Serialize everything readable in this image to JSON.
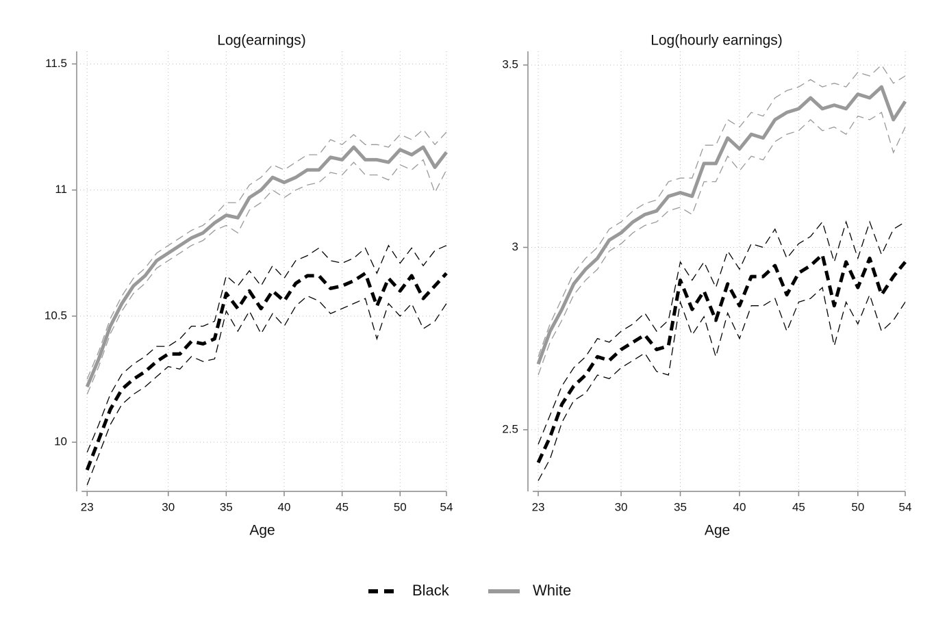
{
  "chart_data": [
    {
      "type": "line",
      "title": "Log(earnings)",
      "x_label": "Age",
      "x": [
        23,
        24,
        25,
        26,
        27,
        28,
        29,
        30,
        31,
        32,
        33,
        34,
        35,
        36,
        37,
        38,
        39,
        40,
        41,
        42,
        43,
        44,
        45,
        46,
        47,
        48,
        49,
        50,
        51,
        52,
        53,
        54
      ],
      "xlim": [
        22.1,
        54
      ],
      "xticks": [
        23,
        30,
        35,
        40,
        45,
        50,
        54
      ],
      "ylim": [
        9.805,
        11.55
      ],
      "yticks": [
        10,
        10.5,
        11,
        11.5
      ],
      "grid": true,
      "series": [
        {
          "name": "Black",
          "color": "#000000",
          "dashed": true,
          "values": [
            9.89,
            10.01,
            10.13,
            10.21,
            10.25,
            10.28,
            10.32,
            10.35,
            10.35,
            10.4,
            10.39,
            10.41,
            10.59,
            10.53,
            10.6,
            10.53,
            10.6,
            10.56,
            10.63,
            10.66,
            10.66,
            10.61,
            10.62,
            10.64,
            10.67,
            10.54,
            10.65,
            10.6,
            10.66,
            10.57,
            10.62,
            10.67
          ],
          "upper": [
            9.96,
            10.07,
            10.19,
            10.27,
            10.31,
            10.34,
            10.38,
            10.38,
            10.41,
            10.46,
            10.46,
            10.48,
            10.66,
            10.62,
            10.68,
            10.62,
            10.7,
            10.65,
            10.72,
            10.74,
            10.77,
            10.72,
            10.71,
            10.73,
            10.77,
            10.67,
            10.78,
            10.71,
            10.77,
            10.7,
            10.76,
            10.78
          ],
          "lower": [
            9.83,
            9.95,
            10.07,
            10.15,
            10.19,
            10.22,
            10.26,
            10.3,
            10.29,
            10.34,
            10.32,
            10.33,
            10.52,
            10.44,
            10.52,
            10.43,
            10.51,
            10.46,
            10.54,
            10.58,
            10.56,
            10.51,
            10.53,
            10.55,
            10.57,
            10.41,
            10.55,
            10.5,
            10.55,
            10.45,
            10.48,
            10.55
          ]
        },
        {
          "name": "White",
          "color": "#999999",
          "dashed": false,
          "values": [
            10.22,
            10.33,
            10.46,
            10.55,
            10.62,
            10.66,
            10.72,
            10.75,
            10.78,
            10.81,
            10.83,
            10.87,
            10.9,
            10.89,
            10.97,
            11.0,
            11.05,
            11.03,
            11.05,
            11.08,
            11.08,
            11.13,
            11.12,
            11.17,
            11.12,
            11.12,
            11.11,
            11.16,
            11.14,
            11.17,
            11.09,
            11.15
          ],
          "upper": [
            10.25,
            10.36,
            10.49,
            10.58,
            10.65,
            10.69,
            10.75,
            10.78,
            10.81,
            10.84,
            10.86,
            10.9,
            10.95,
            10.95,
            11.02,
            11.05,
            11.1,
            11.08,
            11.11,
            11.14,
            11.14,
            11.2,
            11.18,
            11.22,
            11.18,
            11.18,
            11.17,
            11.22,
            11.2,
            11.24,
            11.18,
            11.23
          ],
          "lower": [
            10.19,
            10.3,
            10.43,
            10.52,
            10.59,
            10.63,
            10.69,
            10.72,
            10.75,
            10.78,
            10.8,
            10.84,
            10.86,
            10.83,
            10.92,
            10.95,
            11.0,
            10.97,
            11.0,
            11.02,
            11.03,
            11.07,
            11.06,
            11.11,
            11.06,
            11.06,
            11.04,
            11.1,
            11.08,
            11.12,
            10.99,
            11.08
          ]
        }
      ]
    },
    {
      "type": "line",
      "title": "Log(hourly earnings)",
      "x_label": "Age",
      "x": [
        23,
        24,
        25,
        26,
        27,
        28,
        29,
        30,
        31,
        32,
        33,
        34,
        35,
        36,
        37,
        38,
        39,
        40,
        41,
        42,
        43,
        44,
        45,
        46,
        47,
        48,
        49,
        50,
        51,
        52,
        53,
        54
      ],
      "xlim": [
        22.13,
        54
      ],
      "xticks": [
        23,
        30,
        35,
        40,
        45,
        50,
        54
      ],
      "ylim": [
        2.331,
        3.5375
      ],
      "yticks": [
        2.5,
        3,
        3.5
      ],
      "grid": true,
      "series": [
        {
          "color": "#000000",
          "dashed": true,
          "values": [
            2.41,
            2.48,
            2.57,
            2.62,
            2.65,
            2.7,
            2.69,
            2.72,
            2.74,
            2.76,
            2.72,
            2.73,
            2.91,
            2.83,
            2.88,
            2.8,
            2.9,
            2.84,
            2.92,
            2.92,
            2.95,
            2.87,
            2.93,
            2.95,
            2.98,
            2.84,
            2.96,
            2.89,
            2.97,
            2.87,
            2.92,
            2.96
          ],
          "upper": [
            2.46,
            2.54,
            2.62,
            2.67,
            2.7,
            2.75,
            2.74,
            2.77,
            2.79,
            2.82,
            2.77,
            2.8,
            2.96,
            2.91,
            2.96,
            2.89,
            2.99,
            2.94,
            3.01,
            3.0,
            3.05,
            2.97,
            3.01,
            3.03,
            3.07,
            2.96,
            3.07,
            2.97,
            3.07,
            2.98,
            3.05,
            3.07
          ],
          "lower": [
            2.36,
            2.42,
            2.52,
            2.58,
            2.6,
            2.65,
            2.64,
            2.67,
            2.69,
            2.71,
            2.66,
            2.65,
            2.85,
            2.76,
            2.81,
            2.7,
            2.82,
            2.75,
            2.84,
            2.84,
            2.86,
            2.77,
            2.85,
            2.86,
            2.89,
            2.73,
            2.85,
            2.79,
            2.87,
            2.77,
            2.8,
            2.85
          ]
        },
        {
          "color": "#999999",
          "dashed": false,
          "values": [
            2.68,
            2.77,
            2.83,
            2.9,
            2.94,
            2.97,
            3.02,
            3.04,
            3.07,
            3.09,
            3.1,
            3.14,
            3.15,
            3.14,
            3.23,
            3.23,
            3.3,
            3.27,
            3.31,
            3.3,
            3.35,
            3.37,
            3.38,
            3.41,
            3.38,
            3.39,
            3.38,
            3.42,
            3.41,
            3.44,
            3.35,
            3.4
          ],
          "upper": [
            2.7,
            2.79,
            2.86,
            2.93,
            2.97,
            3.0,
            3.05,
            3.07,
            3.1,
            3.12,
            3.13,
            3.18,
            3.19,
            3.19,
            3.28,
            3.28,
            3.35,
            3.33,
            3.37,
            3.36,
            3.41,
            3.43,
            3.44,
            3.46,
            3.44,
            3.45,
            3.44,
            3.48,
            3.47,
            3.5,
            3.45,
            3.47
          ],
          "lower": [
            2.65,
            2.74,
            2.8,
            2.87,
            2.91,
            2.94,
            2.99,
            3.01,
            3.04,
            3.06,
            3.07,
            3.1,
            3.11,
            3.09,
            3.18,
            3.18,
            3.25,
            3.21,
            3.25,
            3.24,
            3.29,
            3.31,
            3.32,
            3.35,
            3.32,
            3.33,
            3.31,
            3.36,
            3.35,
            3.37,
            3.26,
            3.33
          ]
        }
      ]
    }
  ]
}
